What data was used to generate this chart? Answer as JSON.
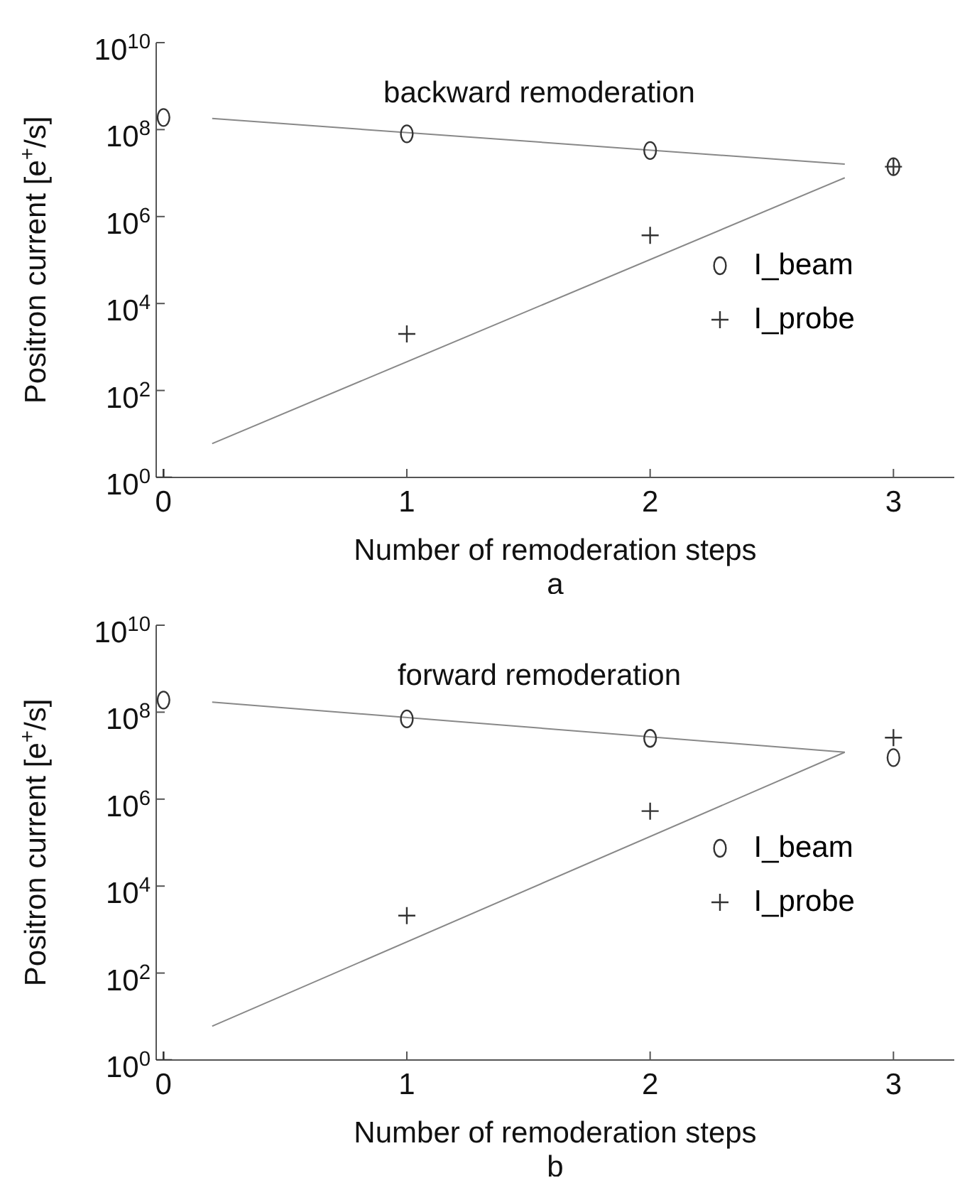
{
  "chart_data": [
    {
      "type": "scatter",
      "title": "backward remoderation",
      "xlabel": "Number of remoderation steps",
      "ylabel": "Positron current [e$^{+}$/s]",
      "annotations": [
        "a"
      ],
      "log": "y",
      "grid": false,
      "legend": "right",
      "xlim": [
        -0.03,
        3.25
      ],
      "xticks": [
        0,
        1,
        2,
        3
      ],
      "ylim": [
        1,
        10000000000
      ],
      "yticks": [
        {
          "value": 1,
          "label": "10$^{0}$"
        },
        {
          "value": 100,
          "label": "10$^{2}$"
        },
        {
          "value": 10000,
          "label": "10$^{4}$"
        },
        {
          "value": 1000000,
          "label": "10$^{6}$"
        },
        {
          "value": 100000000,
          "label": "10$^{8}$"
        },
        {
          "value": 10000000000,
          "label": "10$^{10}$"
        }
      ],
      "series": [
        {
          "name": "I_beam",
          "type": "scatter",
          "marker": "circle",
          "color": "#333333",
          "x": [
            0,
            1,
            2,
            3
          ],
          "values": [
            190000000,
            80000000,
            33000000,
            14000000
          ]
        },
        {
          "name": "I_probe",
          "type": "scatter",
          "marker": "cross",
          "color": "#333333",
          "x": [
            0,
            1,
            2,
            3
          ],
          "values": [
            1,
            2000,
            370000,
            14000000
          ]
        },
        {
          "type": "line",
          "color": "#888888",
          "x": [
            0.2,
            2.8
          ],
          "values": [
            180000000,
            16000000
          ]
        },
        {
          "type": "line",
          "color": "#888888",
          "x": [
            0.2,
            2.8
          ],
          "values": [
            6,
            7800000
          ]
        }
      ]
    },
    {
      "type": "scatter",
      "title": "forward remoderation",
      "xlabel": "Number of remoderation steps",
      "ylabel": "Positron current [e$^{+}$/s]",
      "annotations": [
        "b"
      ],
      "log": "y",
      "grid": false,
      "legend": "right",
      "xlim": [
        -0.03,
        3.25
      ],
      "xticks": [
        0,
        1,
        2,
        3
      ],
      "ylim": [
        1,
        10000000000
      ],
      "yticks": [
        {
          "value": 1,
          "label": "10$^{0}$"
        },
        {
          "value": 100,
          "label": "10$^{2}$"
        },
        {
          "value": 10000,
          "label": "10$^{4}$"
        },
        {
          "value": 1000000,
          "label": "10$^{6}$"
        },
        {
          "value": 100000000,
          "label": "10$^{8}$"
        },
        {
          "value": 10000000000,
          "label": "10$^{10}$"
        }
      ],
      "series": [
        {
          "name": "I_beam",
          "type": "scatter",
          "marker": "circle",
          "color": "#333333",
          "x": [
            0,
            1,
            2,
            3
          ],
          "values": [
            190000000,
            70000000,
            25000000,
            9000000
          ]
        },
        {
          "name": "I_probe",
          "type": "scatter",
          "marker": "cross",
          "color": "#333333",
          "x": [
            0,
            1,
            2,
            3
          ],
          "values": [
            1,
            2100,
            530000,
            26000000
          ]
        },
        {
          "type": "line",
          "color": "#888888",
          "x": [
            0.2,
            2.8
          ],
          "values": [
            170000000,
            12000000
          ]
        },
        {
          "type": "line",
          "color": "#888888",
          "x": [
            0.2,
            2.8
          ],
          "values": [
            6,
            12000000
          ]
        }
      ]
    }
  ]
}
